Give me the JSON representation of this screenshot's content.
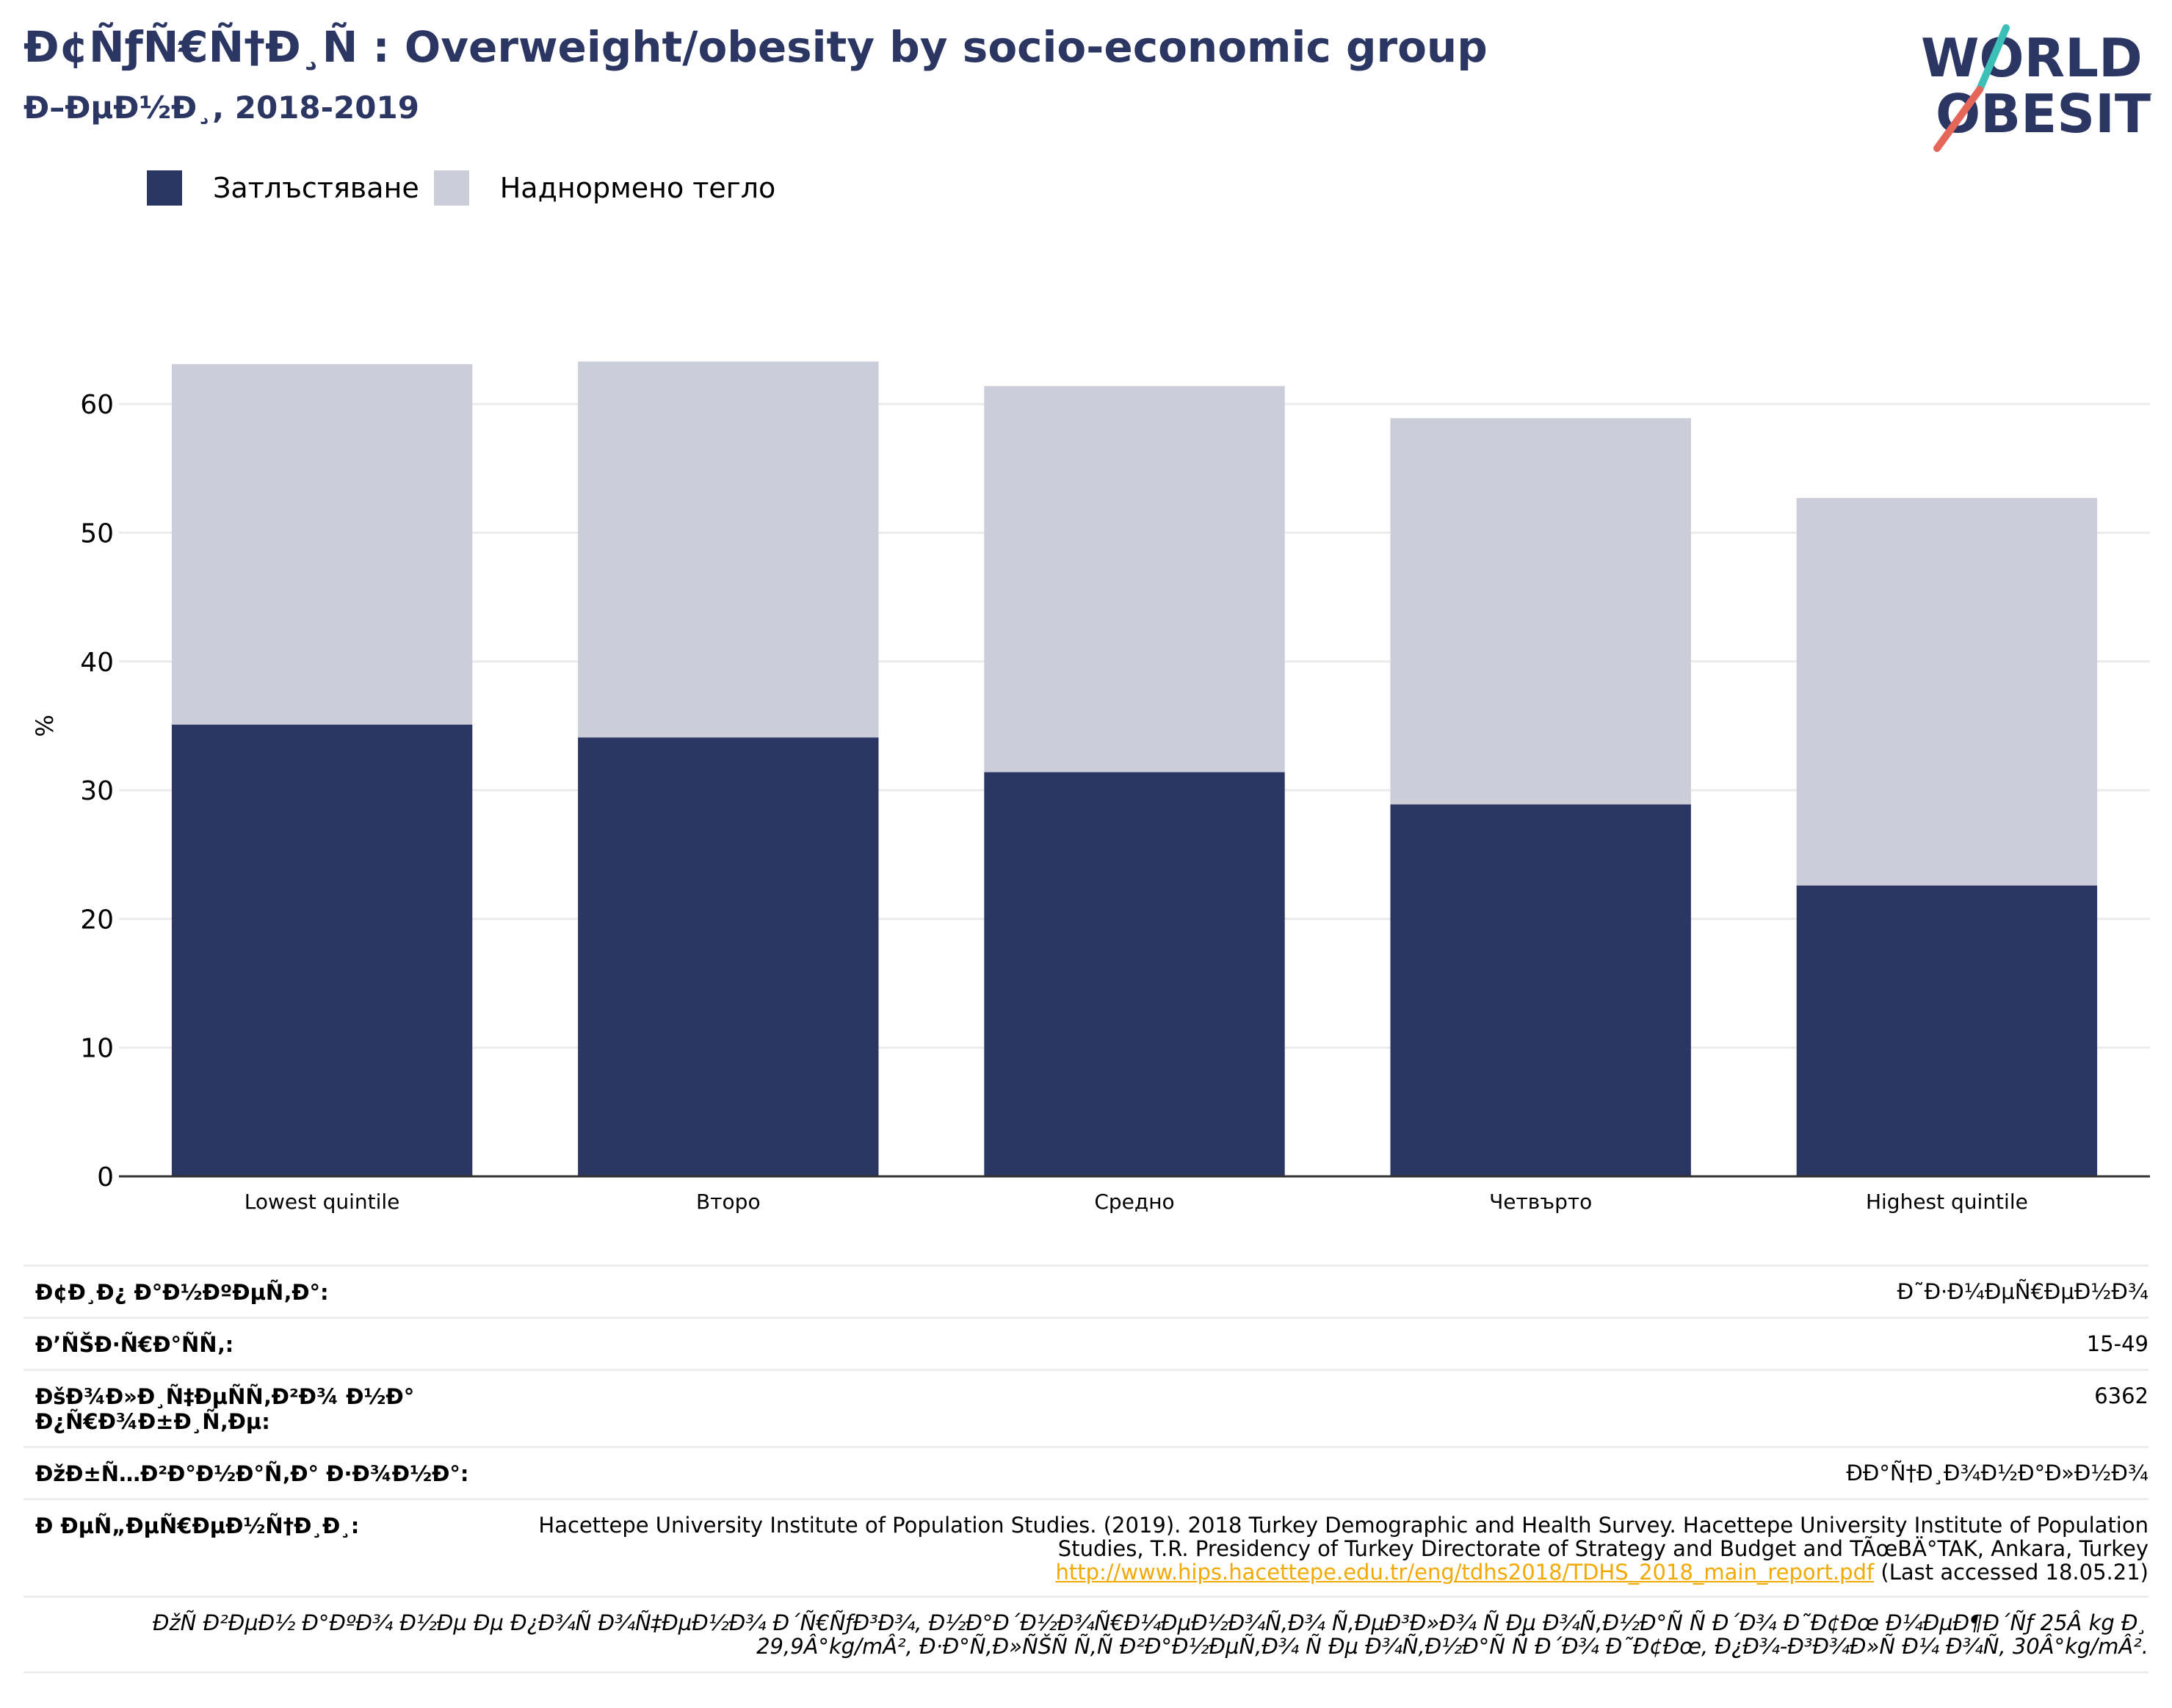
{
  "header": {
    "title": "Ð¢ÑƒÑ€Ñ†Ð¸Ñ : Overweight/obesity by socio-economic group",
    "subtitle": "Ð–ÐµÐ½Ð¸, 2018-2019",
    "logo_text_line1": "WORLD",
    "logo_text_line2": "OBESITY"
  },
  "colors": {
    "obesity": "#2b3663",
    "overweight": "#cbcdd8",
    "title": "#2b3663",
    "accent_teal": "#3bbfb6",
    "accent_coral": "#e4675a",
    "link": "#f2a900"
  },
  "chart_data": {
    "type": "bar",
    "stacked": true,
    "categories": [
      "Lowest quintile",
      "Второ",
      "Средно",
      "Четвърто",
      "Highest quintile"
    ],
    "series": [
      {
        "name": "Затлъстяване",
        "values": [
          35.1,
          34.1,
          31.4,
          28.9,
          22.6
        ]
      },
      {
        "name": "Наднормено тегло",
        "values": [
          28.0,
          29.2,
          30.0,
          30.0,
          30.1
        ]
      }
    ],
    "ylabel": "%",
    "ylim": [
      0,
      70
    ],
    "yticks": [
      0,
      10,
      20,
      30,
      40,
      50,
      60
    ],
    "grid": true,
    "legend_position": "top-left"
  },
  "meta": [
    {
      "key": "Ð¢Ð¸Ð¿ Ð°Ð½ÐºÐµÑ‚Ð°:",
      "value": "Ð˜Ð·Ð¼ÐµÑ€ÐµÐ½Ð¾"
    },
    {
      "key": "Ð’ÑŠÐ·Ñ€Ð°ÑÑ‚:",
      "value": "15-49"
    },
    {
      "key": "ÐšÐ¾Ð»Ð¸Ñ‡ÐµÑÑ‚Ð²Ð¾ Ð½Ð° Ð¿Ñ€Ð¾Ð±Ð¸Ñ‚Ðµ:",
      "value": "6362"
    },
    {
      "key": "ÐžÐ±Ñ…Ð²Ð°Ð½Ð°Ñ‚Ð° Ð·Ð¾Ð½Ð°:",
      "value": "ÐÐ°Ñ†Ð¸Ð¾Ð½Ð°Ð»Ð½Ð¾"
    }
  ],
  "reference": {
    "key": "Ð ÐµÑ„ÐµÑ€ÐµÐ½Ñ†Ð¸Ð¸:",
    "text": "Hacettepe University Institute of Population Studies. (2019). 2018 Turkey Demographic and Health Survey. Hacettepe University Institute of Population Studies, T.R. Presidency of Turkey Directorate of Strategy and Budget and TÃœBÄ°TAK, Ankara, Turkey",
    "link": "http://www.hips.hacettepe.edu.tr/eng/tdhs2018/TDHS_2018_main_report.pdf",
    "accessed": "(Last accessed 18.05.21)"
  },
  "note": "ÐžÑ Ð²ÐµÐ½ Ð°ÐºÐ¾ Ð½Ðµ Ðµ Ð¿Ð¾Ñ Ð¾Ñ‡ÐµÐ½Ð¾ Ð´Ñ€ÑƒÐ³Ð¾, Ð½Ð°Ð´Ð½Ð¾Ñ€Ð¼ÐµÐ½Ð¾Ñ‚Ð¾ Ñ‚ÐµÐ³Ð»Ð¾ Ñ Ðµ Ð¾Ñ‚Ð½Ð°Ñ Ñ  Ð´Ð¾ Ð˜Ð¢Ðœ Ð¼ÐµÐ¶Ð´Ñƒ 25Â kg Ð¸ 29,9Â°kg/mÂ², Ð·Ð°Ñ‚Ð»ÑŠÑ Ñ‚Ñ Ð²Ð°Ð½ÐµÑ‚Ð¾ Ñ Ðµ Ð¾Ñ‚Ð½Ð°Ñ Ñ  Ð´Ð¾ Ð˜Ð¢Ðœ, Ð¿Ð¾-Ð³Ð¾Ð»Ñ Ð¼ Ð¾Ñ‚ 30Â°kg/mÂ²."
}
